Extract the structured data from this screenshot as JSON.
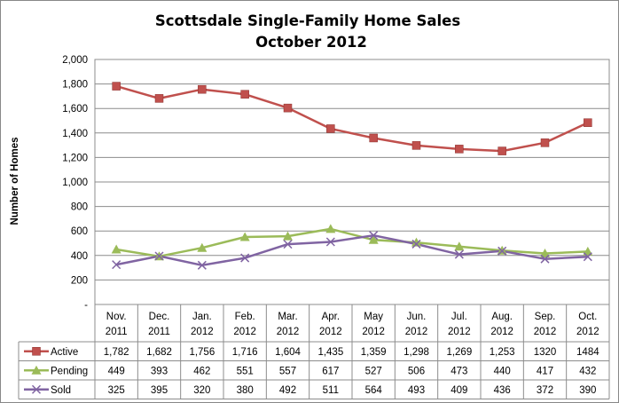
{
  "chart_data": {
    "type": "line",
    "title": "Scottsdale Single-Family Home Sales",
    "subtitle": "October 2012",
    "ylabel": "Number of Homes",
    "xlabel": "",
    "ylim": [
      0,
      2000
    ],
    "ytick_labels": [
      "-",
      "200",
      "400",
      "600",
      "800",
      "1,000",
      "1,200",
      "1,400",
      "1,600",
      "1,800",
      "2,000"
    ],
    "grid": true,
    "legend": "data-table",
    "categories": [
      [
        "Nov.",
        "2011"
      ],
      [
        "Dec.",
        "2011"
      ],
      [
        "Jan.",
        "2012"
      ],
      [
        "Feb.",
        "2012"
      ],
      [
        "Mar.",
        "2012"
      ],
      [
        "Apr.",
        "2012"
      ],
      [
        "May",
        "2012"
      ],
      [
        "Jun.",
        "2012"
      ],
      [
        "Jul.",
        "2012"
      ],
      [
        "Aug.",
        "2012"
      ],
      [
        "Sep.",
        "2012"
      ],
      [
        "Oct.",
        "2012"
      ]
    ],
    "series": [
      {
        "name": "Active",
        "color": "#C0504D",
        "marker": "square",
        "values": [
          1782,
          1682,
          1756,
          1716,
          1604,
          1435,
          1359,
          1298,
          1269,
          1253,
          1320,
          1484
        ],
        "labels": [
          "1,782",
          "1,682",
          "1,756",
          "1,716",
          "1,604",
          "1,435",
          "1,359",
          "1,298",
          "1,269",
          "1,253",
          "1320",
          "1484"
        ]
      },
      {
        "name": "Pending",
        "color": "#9BBB59",
        "marker": "triangle",
        "values": [
          449,
          393,
          462,
          551,
          557,
          617,
          527,
          506,
          473,
          440,
          417,
          432
        ],
        "labels": [
          "449",
          "393",
          "462",
          "551",
          "557",
          "617",
          "527",
          "506",
          "473",
          "440",
          "417",
          "432"
        ]
      },
      {
        "name": "Sold",
        "color": "#8064A2",
        "marker": "x",
        "values": [
          325,
          395,
          320,
          380,
          492,
          511,
          564,
          493,
          409,
          436,
          372,
          390
        ],
        "labels": [
          "325",
          "395",
          "320",
          "380",
          "492",
          "511",
          "564",
          "493",
          "409",
          "436",
          "372",
          "390"
        ]
      }
    ]
  }
}
